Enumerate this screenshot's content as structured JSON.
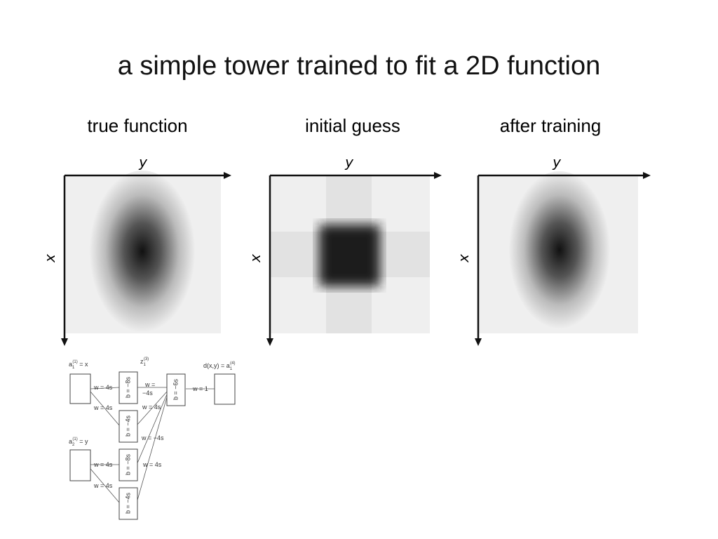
{
  "title": "a simple tower trained to fit a 2D function",
  "panels": [
    {
      "label": "true function",
      "x_axis": "x",
      "y_axis": "y"
    },
    {
      "label": "initial guess",
      "x_axis": "x",
      "y_axis": "y"
    },
    {
      "label": "after training",
      "x_axis": "x",
      "y_axis": "y"
    }
  ],
  "diagram": {
    "node_labels": [
      {
        "base": "a",
        "sub": "1",
        "sup": "(1)",
        "rest": " = x"
      },
      {
        "base": "a",
        "sub": "2",
        "sup": "(1)",
        "rest": " = y"
      },
      {
        "base": "z",
        "sub": "1",
        "sup": "(3)",
        "rest": ""
      },
      {
        "base": "d(x,y) = a",
        "sub": "1",
        "sup": "(4)",
        "rest": ""
      }
    ],
    "biases": [
      "b = −8s",
      "b = −4s",
      "b = −8s",
      "b = −4s",
      "b = −6s"
    ],
    "weights": [
      "w = 4s",
      "w = 4s",
      "w =",
      "−4s",
      "w = 4s",
      "w = −4s",
      "w = 4s",
      "w = 4s",
      "w = 4s",
      "w = 1"
    ]
  }
}
